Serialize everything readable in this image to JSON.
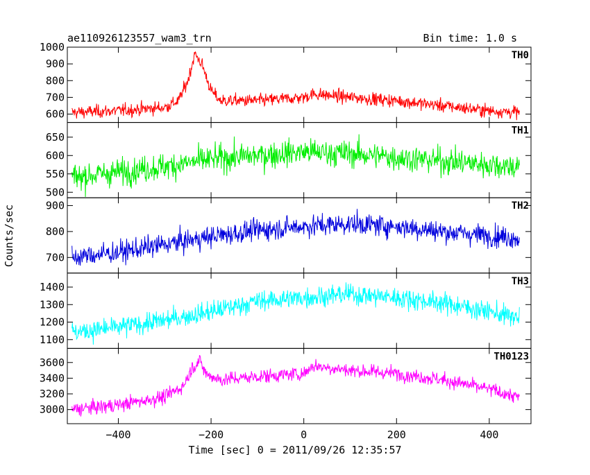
{
  "header": {
    "title": "ae110926123557_wam3_trn",
    "bin_time": "Bin time: 1.0 s"
  },
  "chart_data": {
    "type": "line",
    "xlabel": "Time [sec] 0 = 2011/09/26 12:35:57",
    "ylabel": "Counts/sec",
    "xlim": [
      -510,
      490
    ],
    "x_range": [
      -500,
      465
    ],
    "x_ticks": [
      -400,
      -200,
      0,
      200,
      400
    ],
    "x_tick_labels": [
      "−400",
      "−200",
      "0",
      "200",
      "400"
    ],
    "grid": false,
    "panels": [
      {
        "name": "TH0",
        "color": "#ff0000",
        "ylim": [
          550,
          1000
        ],
        "y_ticks": [
          600,
          700,
          800,
          900,
          1000
        ],
        "trend": [
          [
            -500,
            610
          ],
          [
            -400,
            620
          ],
          [
            -300,
            640
          ],
          [
            -270,
            680
          ],
          [
            -250,
            800
          ],
          [
            -235,
            960
          ],
          [
            -220,
            900
          ],
          [
            -200,
            740
          ],
          [
            -180,
            680
          ],
          [
            -100,
            680
          ],
          [
            0,
            700
          ],
          [
            20,
            720
          ],
          [
            100,
            700
          ],
          [
            200,
            680
          ],
          [
            300,
            650
          ],
          [
            400,
            620
          ],
          [
            465,
            610
          ]
        ],
        "noise": 30
      },
      {
        "name": "TH1",
        "color": "#00ee00",
        "ylim": [
          485,
          690
        ],
        "y_ticks": [
          500,
          550,
          600,
          650
        ],
        "trend": [
          [
            -500,
            540
          ],
          [
            -400,
            555
          ],
          [
            -300,
            570
          ],
          [
            -200,
            590
          ],
          [
            -100,
            600
          ],
          [
            0,
            610
          ],
          [
            100,
            605
          ],
          [
            200,
            595
          ],
          [
            300,
            585
          ],
          [
            400,
            575
          ],
          [
            465,
            570
          ]
        ],
        "noise": 28
      },
      {
        "name": "TH2",
        "color": "#0000dd",
        "ylim": [
          640,
          930
        ],
        "y_ticks": [
          700,
          800,
          900
        ],
        "trend": [
          [
            -500,
            700
          ],
          [
            -400,
            720
          ],
          [
            -300,
            750
          ],
          [
            -200,
            780
          ],
          [
            -100,
            805
          ],
          [
            0,
            820
          ],
          [
            100,
            830
          ],
          [
            200,
            820
          ],
          [
            300,
            800
          ],
          [
            400,
            785
          ],
          [
            465,
            775
          ]
        ],
        "noise": 32
      },
      {
        "name": "TH3",
        "color": "#00ffff",
        "ylim": [
          1050,
          1480
        ],
        "y_ticks": [
          1100,
          1200,
          1300,
          1400
        ],
        "trend": [
          [
            -500,
            1140
          ],
          [
            -400,
            1170
          ],
          [
            -300,
            1210
          ],
          [
            -200,
            1260
          ],
          [
            -100,
            1320
          ],
          [
            0,
            1340
          ],
          [
            100,
            1360
          ],
          [
            200,
            1340
          ],
          [
            300,
            1310
          ],
          [
            400,
            1260
          ],
          [
            465,
            1220
          ]
        ],
        "noise": 45
      },
      {
        "name": "TH0123",
        "color": "#ff00ff",
        "ylim": [
          2820,
          3780
        ],
        "y_ticks": [
          3000,
          3200,
          3400,
          3600
        ],
        "trend": [
          [
            -500,
            3000
          ],
          [
            -400,
            3060
          ],
          [
            -300,
            3160
          ],
          [
            -260,
            3300
          ],
          [
            -240,
            3540
          ],
          [
            -225,
            3620
          ],
          [
            -210,
            3450
          ],
          [
            -180,
            3380
          ],
          [
            -100,
            3420
          ],
          [
            0,
            3460
          ],
          [
            20,
            3560
          ],
          [
            100,
            3500
          ],
          [
            200,
            3460
          ],
          [
            300,
            3380
          ],
          [
            400,
            3260
          ],
          [
            465,
            3150
          ]
        ],
        "noise": 70
      }
    ]
  }
}
